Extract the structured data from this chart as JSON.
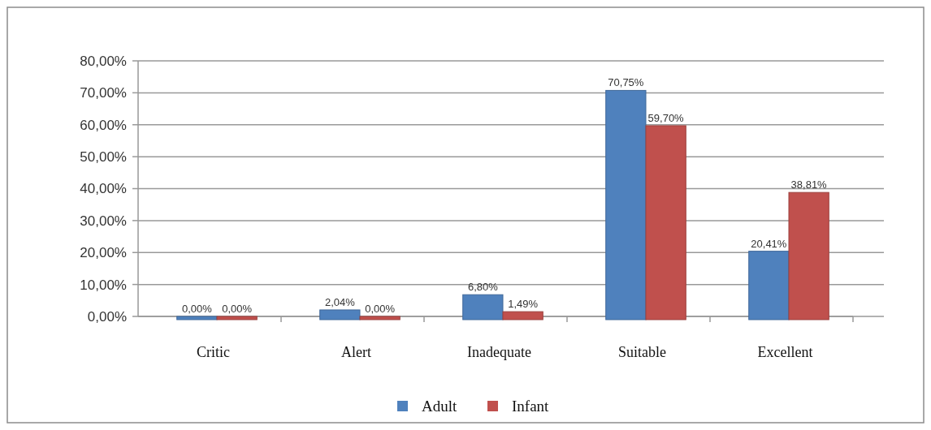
{
  "chart_data": {
    "type": "bar",
    "categories": [
      "Critic",
      "Alert",
      "Inadequate",
      "Suitable",
      "Excellent"
    ],
    "series": [
      {
        "name": "Adult",
        "color": "#4f81bd",
        "values": [
          0,
          2.04,
          6.8,
          70.75,
          20.41
        ],
        "value_labels": [
          "0,00%",
          "2,04%",
          "6,80%",
          "70,75%",
          "20,41%"
        ]
      },
      {
        "name": "Infant",
        "color": "#c0504d",
        "values": [
          0,
          0,
          1.49,
          59.7,
          38.81
        ],
        "value_labels": [
          "0,00%",
          "0,00%",
          "1,49%",
          "59,70%",
          "38,81%"
        ]
      }
    ],
    "ylim": [
      0,
      80
    ],
    "yticks": [
      {
        "value": 0,
        "label": "0,00%"
      },
      {
        "value": 10,
        "label": "10,00%"
      },
      {
        "value": 20,
        "label": "20,00%"
      },
      {
        "value": 30,
        "label": "30,00%"
      },
      {
        "value": 40,
        "label": "40,00%"
      },
      {
        "value": 50,
        "label": "50,00%"
      },
      {
        "value": 60,
        "label": "60,00%"
      },
      {
        "value": 70,
        "label": "70,00%"
      },
      {
        "value": 80,
        "label": "80,00%"
      }
    ],
    "grid": "y",
    "legend": "bottom"
  }
}
